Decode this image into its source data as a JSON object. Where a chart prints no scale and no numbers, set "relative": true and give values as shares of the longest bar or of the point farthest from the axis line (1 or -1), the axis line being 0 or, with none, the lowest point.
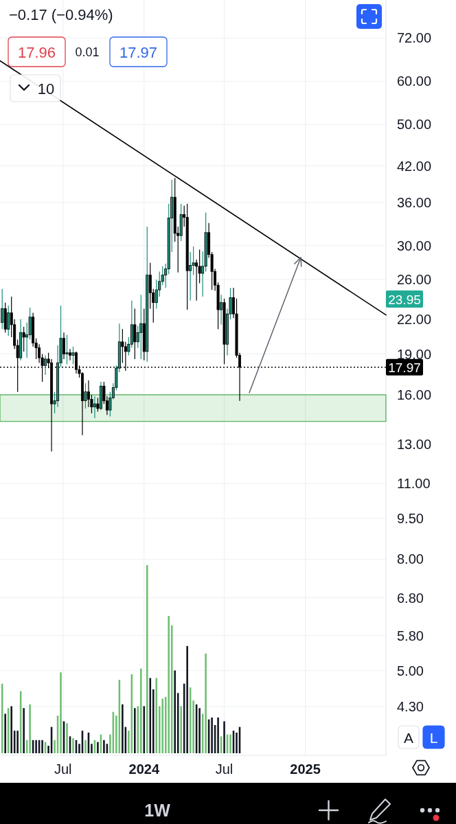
{
  "chart_data": [
    {
      "type": "candlestick",
      "x": [
        "2023-02-13",
        "2023-02-20",
        "2023-02-27",
        "2023-03-06",
        "2023-03-13",
        "2023-03-20",
        "2023-03-27",
        "2023-04-03",
        "2023-04-10",
        "2023-04-17",
        "2023-04-24",
        "2023-05-01",
        "2023-05-08",
        "2023-05-15",
        "2023-05-22",
        "2023-05-29",
        "2023-06-05",
        "2023-06-12",
        "2023-06-19",
        "2023-06-26",
        "2023-07-03",
        "2023-07-10",
        "2023-07-17",
        "2023-07-24",
        "2023-07-31",
        "2023-08-07",
        "2023-08-14",
        "2023-08-21",
        "2023-08-28",
        "2023-09-04",
        "2023-09-11",
        "2023-09-18",
        "2023-09-25",
        "2023-10-02",
        "2023-10-09",
        "2023-10-16",
        "2023-10-23",
        "2023-10-30",
        "2023-11-06",
        "2023-11-13",
        "2023-11-20",
        "2023-11-27",
        "2023-12-04",
        "2023-12-11",
        "2023-12-18",
        "2023-12-25",
        "2024-01-01",
        "2024-01-08",
        "2024-01-15",
        "2024-01-22",
        "2024-01-29",
        "2024-02-05",
        "2024-02-12",
        "2024-02-19",
        "2024-02-26",
        "2024-03-04",
        "2024-03-11",
        "2024-03-18",
        "2024-03-25",
        "2024-04-01",
        "2024-04-08",
        "2024-04-15",
        "2024-04-22",
        "2024-04-29",
        "2024-05-06",
        "2024-05-13",
        "2024-05-20",
        "2024-05-27",
        "2024-06-03",
        "2024-06-10",
        "2024-06-17",
        "2024-06-24",
        "2024-07-01",
        "2024-07-08",
        "2024-07-15",
        "2024-07-22",
        "2024-07-29",
        "2024-08-05"
      ],
      "ohlc": [
        [
          21.7,
          25.0,
          21.1,
          23.0
        ],
        [
          23.0,
          23.6,
          20.8,
          21.1
        ],
        [
          21.1,
          23.3,
          20.5,
          22.6
        ],
        [
          22.6,
          24.2,
          20.4,
          21.5
        ],
        [
          21.5,
          22.0,
          19.4,
          19.7
        ],
        [
          19.7,
          20.2,
          16.2,
          18.7
        ],
        [
          18.7,
          22.0,
          18.5,
          20.8
        ],
        [
          20.8,
          21.3,
          19.2,
          20.4
        ],
        [
          20.4,
          21.7,
          18.7,
          20.6
        ],
        [
          20.6,
          23.1,
          20.2,
          22.2
        ],
        [
          22.2,
          22.6,
          19.6,
          19.9
        ],
        [
          19.9,
          20.3,
          18.6,
          19.5
        ],
        [
          19.5,
          19.8,
          18.3,
          18.7
        ],
        [
          18.7,
          19.0,
          16.9,
          18.1
        ],
        [
          18.1,
          18.9,
          17.4,
          18.6
        ],
        [
          18.6,
          19.1,
          17.9,
          18.3
        ],
        [
          18.3,
          18.6,
          12.6,
          15.4
        ],
        [
          15.4,
          16.2,
          14.8,
          15.6
        ],
        [
          15.6,
          19.7,
          15.2,
          18.3
        ],
        [
          18.3,
          23.3,
          18.0,
          20.3
        ],
        [
          20.3,
          20.8,
          18.6,
          19.0
        ],
        [
          19.0,
          20.6,
          18.2,
          19.1
        ],
        [
          19.1,
          19.4,
          18.5,
          18.9
        ],
        [
          18.9,
          19.6,
          18.2,
          19.1
        ],
        [
          19.1,
          19.2,
          17.5,
          17.8
        ],
        [
          17.8,
          18.1,
          17.2,
          17.5
        ],
        [
          17.5,
          17.6,
          13.5,
          15.6
        ],
        [
          15.6,
          16.8,
          15.1,
          16.2
        ],
        [
          16.2,
          17.0,
          15.2,
          15.7
        ],
        [
          15.7,
          16.0,
          14.8,
          15.2
        ],
        [
          15.2,
          15.9,
          14.5,
          15.4
        ],
        [
          15.4,
          15.8,
          14.9,
          15.1
        ],
        [
          15.1,
          16.9,
          15.0,
          16.6
        ],
        [
          16.6,
          16.9,
          15.4,
          15.6
        ],
        [
          15.6,
          15.9,
          14.7,
          15.0
        ],
        [
          15.0,
          16.2,
          14.6,
          15.8
        ],
        [
          15.8,
          16.8,
          15.7,
          16.5
        ],
        [
          16.5,
          18.1,
          16.3,
          17.9
        ],
        [
          17.9,
          21.6,
          17.6,
          20.0
        ],
        [
          20.0,
          21.1,
          18.3,
          19.6
        ],
        [
          19.6,
          20.0,
          17.7,
          19.2
        ],
        [
          19.2,
          20.4,
          18.9,
          19.8
        ],
        [
          19.8,
          23.8,
          19.5,
          21.5
        ],
        [
          21.5,
          23.0,
          18.6,
          20.0
        ],
        [
          20.0,
          21.4,
          19.5,
          20.8
        ],
        [
          20.8,
          24.4,
          18.6,
          21.6
        ],
        [
          21.6,
          23.0,
          18.5,
          19.2
        ],
        [
          19.2,
          32.5,
          18.4,
          26.5
        ],
        [
          26.5,
          27.9,
          23.0,
          24.6
        ],
        [
          24.6,
          25.0,
          21.7,
          23.6
        ],
        [
          23.6,
          26.0,
          23.0,
          24.9
        ],
        [
          24.9,
          26.9,
          24.2,
          25.8
        ],
        [
          25.8,
          27.5,
          25.4,
          26.5
        ],
        [
          26.5,
          27.8,
          25.1,
          27.2
        ],
        [
          27.2,
          35.8,
          26.6,
          33.7
        ],
        [
          33.7,
          39.6,
          29.2,
          36.8
        ],
        [
          36.8,
          39.9,
          30.5,
          31.6
        ],
        [
          31.6,
          32.5,
          26.8,
          31.3
        ],
        [
          31.3,
          35.8,
          30.6,
          34.2
        ],
        [
          34.2,
          35.5,
          32.5,
          33.8
        ],
        [
          33.8,
          35.8,
          22.9,
          27.0
        ],
        [
          27.0,
          29.2,
          23.8,
          27.6
        ],
        [
          27.6,
          29.9,
          26.5,
          27.9
        ],
        [
          27.9,
          28.3,
          23.8,
          27.5
        ],
        [
          27.5,
          29.5,
          25.6,
          26.7
        ],
        [
          26.7,
          29.3,
          24.2,
          27.5
        ],
        [
          27.5,
          34.5,
          26.9,
          31.7
        ],
        [
          31.7,
          33.0,
          28.5,
          28.9
        ],
        [
          28.9,
          29.2,
          24.9,
          26.9
        ],
        [
          26.9,
          27.2,
          24.8,
          25.4
        ],
        [
          25.4,
          25.7,
          21.1,
          22.9
        ],
        [
          22.9,
          24.4,
          21.5,
          23.6
        ],
        [
          23.6,
          24.0,
          18.2,
          19.8
        ],
        [
          19.8,
          23.0,
          18.9,
          22.5
        ],
        [
          22.5,
          25.1,
          22.0,
          24.1
        ],
        [
          24.1,
          25.1,
          22.1,
          22.5
        ],
        [
          22.5,
          24.0,
          18.7,
          18.9
        ],
        [
          18.9,
          19.1,
          15.6,
          17.97
        ]
      ],
      "colors": [
        "#198c78",
        "#000000",
        "#198c78",
        "#000000",
        "#000000",
        "#000000",
        "#198c78",
        "#000000",
        "#198c78",
        "#198c78",
        "#000000",
        "#000000",
        "#000000",
        "#000000",
        "#198c78",
        "#000000",
        "#000000",
        "#198c78",
        "#198c78",
        "#198c78",
        "#000000",
        "#198c78",
        "#000000",
        "#198c78",
        "#000000",
        "#000000",
        "#000000",
        "#198c78",
        "#000000",
        "#000000",
        "#198c78",
        "#000000",
        "#198c78",
        "#000000",
        "#000000",
        "#198c78",
        "#198c78",
        "#198c78",
        "#198c78",
        "#000000",
        "#000000",
        "#198c78",
        "#198c78",
        "#000000",
        "#198c78",
        "#198c78",
        "#000000",
        "#198c78",
        "#000000",
        "#000000",
        "#198c78",
        "#198c78",
        "#198c78",
        "#198c78",
        "#198c78",
        "#198c78",
        "#000000",
        "#000000",
        "#198c78",
        "#000000",
        "#000000",
        "#198c78",
        "#198c78",
        "#000000",
        "#000000",
        "#198c78",
        "#198c78",
        "#000000",
        "#000000",
        "#000000",
        "#000000",
        "#198c78",
        "#000000",
        "#198c78",
        "#198c78",
        "#000000",
        "#000000",
        "#000000"
      ],
      "series": [
        {
          "type": "line",
          "x": [
            "2023-02-08",
            "2025-07-03"
          ],
          "values": [
            65.4,
            22.4
          ],
          "color": "#000000"
        }
      ],
      "xlim": [
        "2023-02-08",
        "2025-07-03"
      ],
      "xticks": [
        {
          "value": "2023-07-01",
          "label": "Jul"
        },
        {
          "value": "2024-01-01",
          "label": "2024"
        },
        {
          "value": "2024-07-01",
          "label": "Jul"
        },
        {
          "value": "2025-01-01",
          "label": "2025"
        }
      ],
      "ylim": [
        3.5,
        84.5
      ],
      "yticks": [
        {
          "value": 72,
          "label": "72.00"
        },
        {
          "value": 60,
          "label": "60.00"
        },
        {
          "value": 50,
          "label": "50.00"
        },
        {
          "value": 42,
          "label": "42.00"
        },
        {
          "value": 36,
          "label": "36.00"
        },
        {
          "value": 30,
          "label": "30.00"
        },
        {
          "value": 26,
          "label": "26.00"
        },
        {
          "value": 22,
          "label": "22.00"
        },
        {
          "value": 19,
          "label": "19.00"
        },
        {
          "value": 16,
          "label": "16.00"
        },
        {
          "value": 13,
          "label": "13.00"
        },
        {
          "value": 11,
          "label": "11.00"
        },
        {
          "value": 9.5,
          "label": "9.50"
        },
        {
          "value": 8,
          "label": "8.00"
        },
        {
          "value": 6.8,
          "label": "6.80"
        },
        {
          "value": 5.8,
          "label": "5.80"
        },
        {
          "value": 5,
          "label": "5.00"
        },
        {
          "value": 4.3,
          "label": "4.30"
        }
      ],
      "log": true,
      "grid": true,
      "ref_lines": [
        {
          "axis": "y",
          "value": 17.97,
          "label": "17.97",
          "color": "#000000",
          "line_style": "dotted"
        }
      ],
      "bands": [
        {
          "axis": "y",
          "from": 14.3,
          "to": 16.0,
          "color": "#4caf50"
        }
      ],
      "annotations": [
        "−0.17 (−0.94%)",
        "17.96",
        "0.01",
        "17.97",
        "10",
        "1W",
        "A",
        "L",
        "23.95"
      ]
    },
    {
      "type": "bar",
      "relative": true,
      "categories": [
        null,
        null,
        null,
        null,
        null,
        null,
        null,
        null,
        null,
        null,
        null,
        null,
        null,
        null,
        null,
        null,
        null,
        null,
        null,
        null,
        null,
        null,
        null,
        null,
        null,
        null,
        null,
        null,
        null,
        null,
        null,
        null,
        null,
        null,
        null,
        null,
        null,
        null,
        null,
        null,
        null,
        null,
        null,
        null,
        null,
        null,
        null,
        null,
        null,
        null,
        null,
        null,
        null,
        null,
        null,
        null,
        null,
        null,
        null,
        null,
        null,
        null,
        null,
        null,
        null,
        null,
        null,
        null,
        null,
        null,
        null,
        null,
        null,
        null,
        null,
        null,
        null,
        null
      ],
      "values": [
        0.37,
        0.21,
        0.24,
        0.25,
        0.12,
        0.12,
        0.33,
        0.24,
        0.07,
        0.26,
        0.07,
        0.07,
        0.07,
        0.07,
        0.06,
        0.04,
        0.14,
        0.07,
        0.2,
        0.43,
        0.17,
        0.16,
        0.09,
        0.08,
        0.07,
        0.05,
        0.12,
        0.07,
        0.11,
        0.05,
        0.07,
        0.06,
        0.1,
        0.07,
        0.05,
        0.1,
        0.22,
        0.2,
        0.39,
        0.26,
        0.14,
        0.12,
        0.42,
        0.24,
        0.25,
        0.45,
        0.25,
        1,
        0.4,
        0.34,
        0.4,
        0.25,
        0.29,
        0.3,
        0.73,
        0.68,
        0.44,
        0.32,
        0.25,
        0.37,
        0.57,
        0.35,
        0.28,
        0.26,
        0.24,
        0.21,
        0.53,
        0.18,
        0.19,
        0.15,
        0.19,
        0.09,
        0.17,
        0.1,
        0.1,
        0.12,
        0.11,
        0.14
      ],
      "colors": [
        "#6fbf73",
        "#131722",
        "#6fbf73",
        "#131722",
        "#131722",
        "#131722",
        "#6fbf73",
        "#131722",
        "#6fbf73",
        "#6fbf73",
        "#131722",
        "#131722",
        "#131722",
        "#131722",
        "#6fbf73",
        "#131722",
        "#131722",
        "#6fbf73",
        "#6fbf73",
        "#6fbf73",
        "#131722",
        "#6fbf73",
        "#131722",
        "#6fbf73",
        "#131722",
        "#131722",
        "#131722",
        "#6fbf73",
        "#131722",
        "#131722",
        "#6fbf73",
        "#131722",
        "#6fbf73",
        "#131722",
        "#131722",
        "#6fbf73",
        "#6fbf73",
        "#6fbf73",
        "#6fbf73",
        "#131722",
        "#131722",
        "#6fbf73",
        "#6fbf73",
        "#131722",
        "#6fbf73",
        "#6fbf73",
        "#131722",
        "#6fbf73",
        "#131722",
        "#131722",
        "#6fbf73",
        "#6fbf73",
        "#6fbf73",
        "#6fbf73",
        "#6fbf73",
        "#6fbf73",
        "#131722",
        "#131722",
        "#6fbf73",
        "#131722",
        "#131722",
        "#6fbf73",
        "#6fbf73",
        "#131722",
        "#131722",
        "#6fbf73",
        "#6fbf73",
        "#131722",
        "#131722",
        "#131722",
        "#131722",
        "#6fbf73",
        "#131722",
        "#6fbf73",
        "#6fbf73",
        "#131722",
        "#131722",
        "#131722"
      ]
    }
  ]
}
